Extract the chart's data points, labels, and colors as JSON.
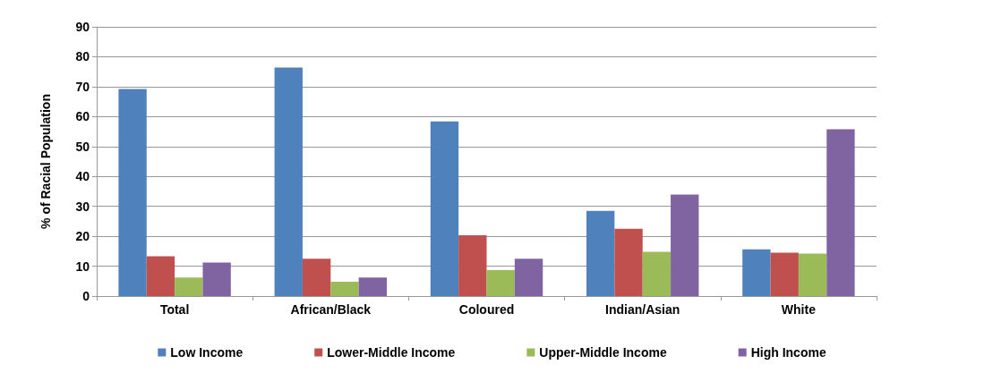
{
  "chart_data": {
    "type": "bar",
    "ylabel": "% of Racial Population",
    "categories": [
      "Total",
      "African/Black",
      "Coloured",
      "Indian/Asian",
      "White"
    ],
    "series": [
      {
        "name": "Low Income",
        "color": "#4f81bd",
        "values": [
          69.2,
          76.4,
          58.4,
          28.5,
          15.6
        ]
      },
      {
        "name": "Lower-Middle Income",
        "color": "#c0504d",
        "values": [
          13.3,
          12.5,
          20.3,
          22.5,
          14.5
        ]
      },
      {
        "name": "Upper-Middle Income",
        "color": "#9bbb59",
        "values": [
          6.2,
          4.8,
          8.7,
          14.8,
          14.2
        ]
      },
      {
        "name": "High Income",
        "color": "#8064a2",
        "values": [
          11.2,
          6.2,
          12.5,
          33.9,
          55.8
        ]
      }
    ],
    "ylim": [
      0,
      90
    ],
    "yticks": [
      0,
      10,
      20,
      30,
      40,
      50,
      60,
      70,
      80,
      90
    ],
    "grid": "y",
    "legend": "bottom"
  }
}
